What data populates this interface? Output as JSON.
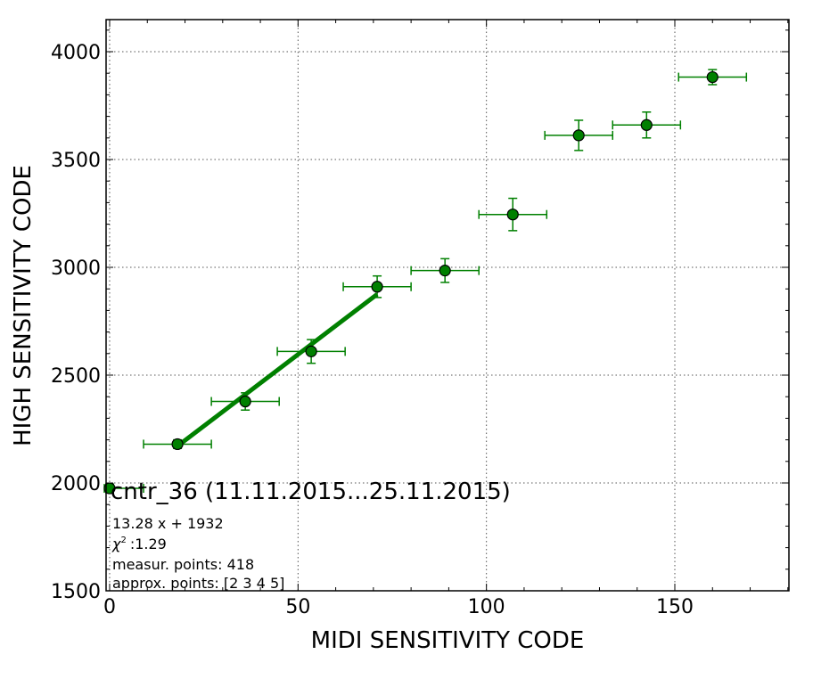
{
  "chart_data": {
    "type": "scatter",
    "title": "cntr_36 (11.11.2015...25.11.2015)",
    "xlabel": "MIDI SENSITIVITY CODE",
    "ylabel": "HIGH SENSITIVITY CODE",
    "xlim": [
      0,
      180
    ],
    "ylim": [
      1500,
      4150
    ],
    "xticks": [
      0,
      50,
      100,
      150
    ],
    "yticks": [
      1500,
      2000,
      2500,
      3000,
      3500,
      4000
    ],
    "grid": true,
    "colors": {
      "points": "#008000",
      "fit": "#008000"
    },
    "points": [
      {
        "x": 0,
        "y": 1975,
        "xerr": 9,
        "yerr": 20
      },
      {
        "x": 18,
        "y": 2180,
        "xerr": 9,
        "yerr": 20
      },
      {
        "x": 36,
        "y": 2378,
        "xerr": 9,
        "yerr": 40
      },
      {
        "x": 53.5,
        "y": 2610,
        "xerr": 9,
        "yerr": 55
      },
      {
        "x": 71,
        "y": 2910,
        "xerr": 9,
        "yerr": 50
      },
      {
        "x": 89,
        "y": 2985,
        "xerr": 9,
        "yerr": 55
      },
      {
        "x": 107,
        "y": 3245,
        "xerr": 9,
        "yerr": 75
      },
      {
        "x": 124.5,
        "y": 3612,
        "xerr": 9,
        "yerr": 70
      },
      {
        "x": 142.5,
        "y": 3660,
        "xerr": 9,
        "yerr": 60
      },
      {
        "x": 160,
        "y": 3882,
        "xerr": 9,
        "yerr": 35
      }
    ],
    "fit": {
      "slope": 13.28,
      "intercept": 1932,
      "x_range": [
        18,
        71
      ]
    },
    "annotations": {
      "equation": "13.28 x + 1932",
      "chi2_symbol": "χ",
      "chi2_exp": "2",
      "chi2_value": ":1.29",
      "measur_points": "measur. points: 418",
      "approx_points": "approx. points: [2 3 4 5]"
    }
  }
}
